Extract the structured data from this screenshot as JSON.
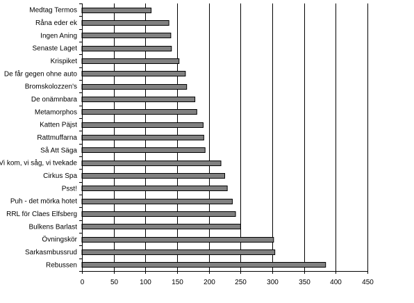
{
  "chart_data": {
    "type": "bar",
    "orientation": "horizontal",
    "title": "",
    "xlabel": "",
    "ylabel": "",
    "categories": [
      "Medtag Termos",
      "Råna eder ek",
      "Ingen Aning",
      "Senaste Laget",
      "Krispiket",
      "De får gegen ohne auto",
      "Bromskolozzen's",
      "De onämnbara",
      "Metamorphos",
      "Katten Päjst",
      "Rattmuffarna",
      "Så Att Säga",
      "Vi kom, vi såg, vi tvekade",
      "Cirkus Spa",
      "Psst!",
      "Puh - det mörka hotet",
      "RRL för Claes Elfsberg",
      "Bulkens Barlast",
      "Övningskör",
      "Sarkasmbussrud",
      "Rebussen"
    ],
    "values": [
      109,
      137,
      140,
      141,
      153,
      163,
      165,
      178,
      181,
      191,
      192,
      194,
      219,
      225,
      229,
      237,
      242,
      250,
      302,
      304,
      384
    ],
    "xlim": [
      0,
      450
    ],
    "x_ticks": [
      0,
      50,
      100,
      150,
      200,
      250,
      300,
      350,
      400,
      450
    ],
    "grid": "vertical",
    "legend": "none",
    "colors": {
      "bar_fill": "#808080",
      "bar_stroke": "#000000",
      "grid": "#000000",
      "axis": "#000000"
    }
  }
}
